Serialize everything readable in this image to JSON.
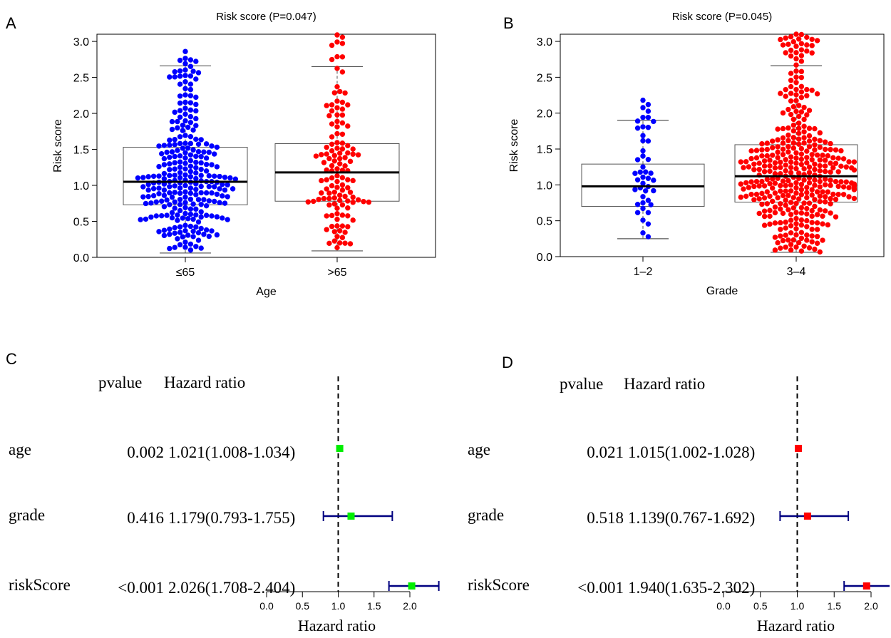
{
  "panel_letters": {
    "a": "A",
    "b": "B",
    "c": "C",
    "d": "D"
  },
  "colors": {
    "blue": "#0000ff",
    "red": "#ff0000",
    "green": "#00ee00",
    "navy": "#000080",
    "black": "#000000",
    "box": "#555555"
  },
  "chart_data": [
    {
      "type": "box-swarm",
      "title": "Risk score (P=0.047)",
      "xlabel": "Age",
      "ylabel": "Risk score",
      "ylim": [
        0,
        3.1
      ],
      "yticks": [
        "0.0",
        "0.5",
        "1.0",
        "1.5",
        "2.0",
        "2.5",
        "3.0"
      ],
      "categories": [
        "≤65",
        ">65"
      ],
      "point_colors": [
        "#0000ff",
        "#ff0000"
      ],
      "boxes": [
        {
          "whisker_low": 0.06,
          "q1": 0.73,
          "median": 1.05,
          "q3": 1.53,
          "whisker_high": 2.66,
          "n_points": 270,
          "max_point": 2.86
        },
        {
          "whisker_low": 0.09,
          "q1": 0.78,
          "median": 1.18,
          "q3": 1.58,
          "whisker_high": 2.65,
          "n_points": 125,
          "max_point": 3.09
        }
      ]
    },
    {
      "type": "box-swarm",
      "title": "Risk score (P=0.045)",
      "xlabel": "Grade",
      "ylabel": "Risk score",
      "ylim": [
        0,
        3.1
      ],
      "yticks": [
        "0.0",
        "0.5",
        "1.0",
        "1.5",
        "2.0",
        "2.5",
        "3.0"
      ],
      "categories": [
        "1–2",
        "3–4"
      ],
      "point_colors": [
        "#0000ff",
        "#ff0000"
      ],
      "boxes": [
        {
          "whisker_low": 0.25,
          "q1": 0.7,
          "median": 0.98,
          "q3": 1.29,
          "whisker_high": 1.9,
          "n_points": 45,
          "max_point": 2.18
        },
        {
          "whisker_low": 0.06,
          "q1": 0.76,
          "median": 1.12,
          "q3": 1.56,
          "whisker_high": 2.66,
          "n_points": 380,
          "max_point": 3.1
        }
      ]
    },
    {
      "type": "forest",
      "header_pvalue": "pvalue",
      "header_hr": "Hazard ratio",
      "xlabel": "Hazard ratio",
      "xlim": [
        0,
        2.0
      ],
      "xticks": [
        "0.0",
        "0.5",
        "1.0",
        "1.5",
        "2.0"
      ],
      "marker_color": "#00ee00",
      "rows": [
        {
          "label": "age",
          "pvalue": "0.002",
          "hr_text": "1.021(1.008-1.034)",
          "hr": 1.021,
          "low": 1.008,
          "high": 1.034
        },
        {
          "label": "grade",
          "pvalue": "0.416",
          "hr_text": "1.179(0.793-1.755)",
          "hr": 1.179,
          "low": 0.793,
          "high": 1.755
        },
        {
          "label": "riskScore",
          "pvalue": "<0.001",
          "hr_text": "2.026(1.708-2.404)",
          "hr": 2.026,
          "low": 1.708,
          "high": 2.404
        }
      ]
    },
    {
      "type": "forest",
      "header_pvalue": "pvalue",
      "header_hr": "Hazard ratio",
      "xlabel": "Hazard ratio",
      "xlim": [
        0,
        2.0
      ],
      "xticks": [
        "0.0",
        "0.5",
        "1.0",
        "1.5",
        "2.0"
      ],
      "marker_color": "#ff0000",
      "rows": [
        {
          "label": "age",
          "pvalue": "0.021",
          "hr_text": "1.015(1.002-1.028)",
          "hr": 1.015,
          "low": 1.002,
          "high": 1.028
        },
        {
          "label": "grade",
          "pvalue": "0.518",
          "hr_text": "1.139(0.767-1.692)",
          "hr": 1.139,
          "low": 0.767,
          "high": 1.692
        },
        {
          "label": "riskScore",
          "pvalue": "<0.001",
          "hr_text": "1.940(1.635-2.302)",
          "hr": 1.94,
          "low": 1.635,
          "high": 2.302
        }
      ]
    }
  ]
}
